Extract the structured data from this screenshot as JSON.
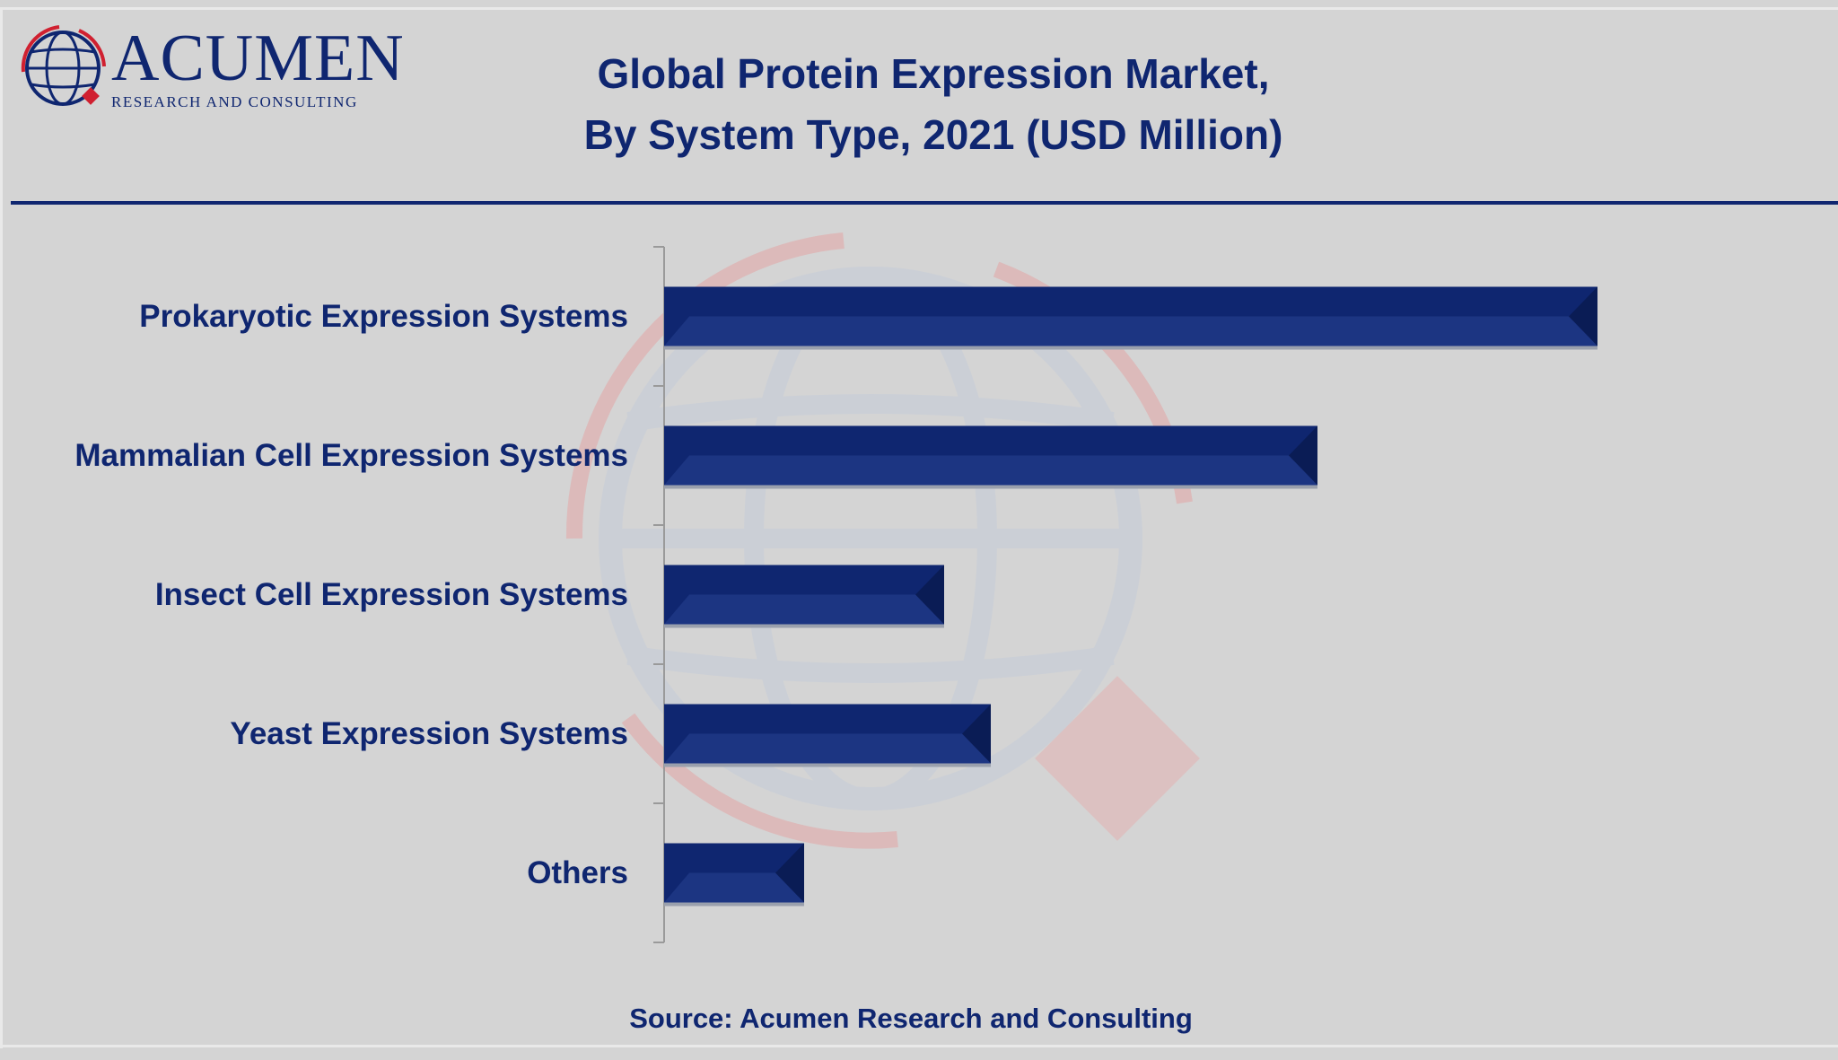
{
  "brand": {
    "name": "ACUMEN",
    "subtitle": "RESEARCH AND CONSULTING"
  },
  "chart_data": {
    "type": "bar",
    "orientation": "horizontal",
    "title_line1": "Global Protein Expression Market,",
    "title_line2": "By System Type, 2021 (USD Million)",
    "categories": [
      "Prokaryotic Expression Systems",
      "Mammalian Cell Expression Systems",
      "Insect Cell Expression Systems",
      "Yeast Expression Systems",
      "Others"
    ],
    "values": [
      100,
      70,
      30,
      35,
      15
    ],
    "xlim": [
      0,
      100
    ],
    "grid": false,
    "bar_color": "#0f2670"
  },
  "source": "Source: Acumen Research and Consulting",
  "colors": {
    "accent": "#0f2670",
    "background": "#d4d4d4",
    "watermark_red": "#e3a5a5"
  }
}
